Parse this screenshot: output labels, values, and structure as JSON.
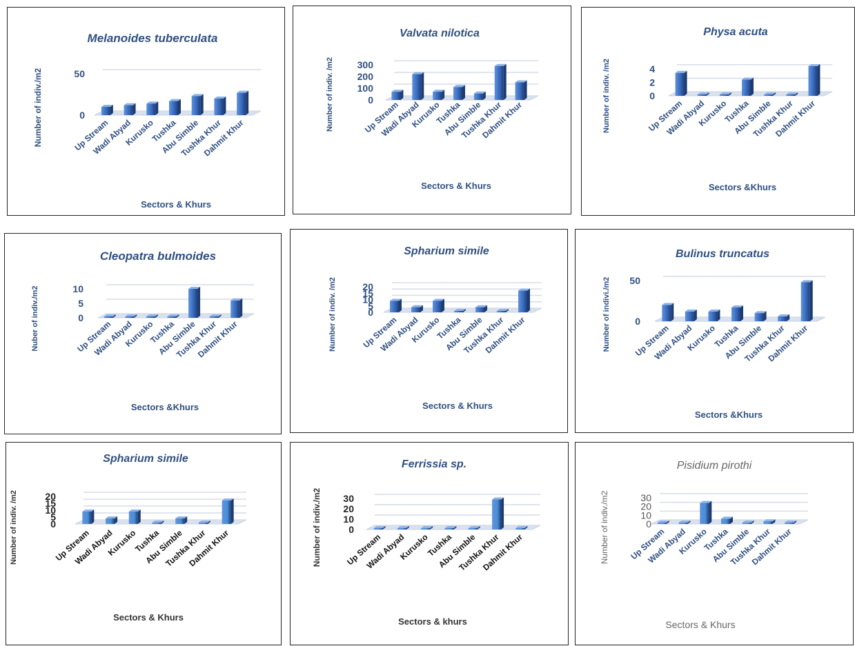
{
  "chart_data": [
    {
      "type": "bar",
      "title": "Melanoides tuberculata",
      "ylabel": "Number of indiv./m2",
      "xlabel": "Sectors & Khurs",
      "categories": [
        "Up Stream",
        "Wadi Abyad",
        "Kurusko",
        "Tushka",
        "Abu Simble",
        "Tushka Khur",
        "Dahmit Khur"
      ],
      "values": [
        10,
        12,
        14,
        17,
        23,
        20,
        27
      ],
      "yticks": [
        0,
        50
      ],
      "ylim": [
        0,
        50
      ],
      "grid": true,
      "color": "#3566b8"
    },
    {
      "type": "bar",
      "title": "Valvata nilotica",
      "ylabel": "Number of indiv. /m2",
      "xlabel": "Sectors & Khurs",
      "categories": [
        "Up Stream",
        "Wadi Abyad",
        "Kurusko",
        "Tushka",
        "Abu Simble",
        "Tushka Khur",
        "Dahmit Khur"
      ],
      "values": [
        70,
        220,
        70,
        110,
        55,
        290,
        150
      ],
      "yticks": [
        0,
        100,
        200,
        300
      ],
      "ylim": [
        0,
        300
      ],
      "grid": true,
      "color": "#3566b8"
    },
    {
      "type": "bar",
      "title": "Physa acuta",
      "ylabel": "Number of indiv. /m2",
      "xlabel": "Sectors &Khurs",
      "categories": [
        "Up Stream",
        "Wadi Abyad",
        "Kurusko",
        "Tushka",
        "Abu Simble",
        "Tushka Khur",
        "Dahmit Khur"
      ],
      "values": [
        3.4,
        0,
        0,
        2.4,
        0,
        0,
        4.4
      ],
      "yticks": [
        0,
        2,
        4
      ],
      "ylim": [
        0,
        4.4
      ],
      "grid": true,
      "color": "#3566b8"
    },
    {
      "type": "bar",
      "title": "Cleopatra bulmoides",
      "ylabel": "Nuber of indiv./m2",
      "xlabel": "Sectors &Khurs",
      "categories": [
        "Up Stream",
        "Wadi Abyad",
        "Kurusko",
        "Tushka",
        "Abu Simble",
        "Tushka Khur",
        "Dahmit Khur"
      ],
      "values": [
        0,
        0,
        0,
        0,
        10,
        0,
        6
      ],
      "yticks": [
        0,
        5,
        10
      ],
      "ylim": [
        0,
        10
      ],
      "grid": true,
      "color": "#3566b8"
    },
    {
      "type": "bar",
      "title": "Spharium simile",
      "ylabel": "Number of indiv. /m2",
      "xlabel": "Sectors & Khurs",
      "categories": [
        "Up Stream",
        "Wadi Abyad",
        "Kurusko",
        "Tushka",
        "Abu Simble",
        "Tushka Khur",
        "Dahmit Khur"
      ],
      "values": [
        9,
        4,
        9,
        0,
        4,
        0,
        17
      ],
      "yticks": [
        0,
        5,
        10,
        15,
        20
      ],
      "ylim": [
        0,
        20
      ],
      "grid": true,
      "color": "#3566b8"
    },
    {
      "type": "bar",
      "title": "Bulinus truncatus",
      "ylabel": "Number of indivi./m2",
      "xlabel": "Sectors &Khurs",
      "categories": [
        "Up Stream",
        "Wadi Abyad",
        "Kurusko",
        "Tushka",
        "Abu Simble",
        "Tushka Khur",
        "Dahmit Khur"
      ],
      "values": [
        20,
        12,
        12,
        17,
        10,
        6,
        48
      ],
      "yticks": [
        0,
        50
      ],
      "ylim": [
        0,
        50
      ],
      "grid": true,
      "color": "#3566b8"
    },
    {
      "type": "bar",
      "title": "Spharium simile",
      "ylabel": "Number of indiv. /m2",
      "xlabel": "Sectors & Khurs",
      "categories": [
        "Up Stream",
        "Wadi Abyad",
        "Kurusko",
        "Tushka",
        "Abu Simble",
        "Tushka Khur",
        "Dahmit Khur"
      ],
      "values": [
        9,
        4,
        9,
        0,
        4,
        0,
        17
      ],
      "yticks": [
        0,
        5,
        10,
        15,
        20
      ],
      "ylim": [
        0,
        20
      ],
      "grid": true,
      "color": "#4a8fd6"
    },
    {
      "type": "bar",
      "title": "Ferrissia sp.",
      "ylabel": "Number of indiv./m2",
      "xlabel": "Sectors & khurs",
      "categories": [
        "Up Stream",
        "Wadi Abyad",
        "Kurusko",
        "Tushka",
        "Abu Simble",
        "Tushka Khur",
        "Dahmit Khur"
      ],
      "values": [
        0,
        0,
        0,
        0,
        0,
        29,
        0
      ],
      "yticks": [
        0,
        10,
        20,
        30
      ],
      "ylim": [
        0,
        30
      ],
      "grid": true,
      "color": "#4a8fd6"
    },
    {
      "type": "bar",
      "title": "Pisidium pirothi",
      "ylabel": "Number of indiv./m2",
      "xlabel": "Sectors & Khurs",
      "categories": [
        "Up Stream",
        "Wadi Abyad",
        "Kurusko",
        "Tushka",
        "Abu Simble",
        "Tushka Khur",
        "Dahmit Khur"
      ],
      "values": [
        0,
        0,
        24,
        6,
        0,
        3,
        0
      ],
      "yticks": [
        0,
        10,
        20,
        30
      ],
      "ylim": [
        0,
        30
      ],
      "grid": true,
      "color": "#4a8fd6"
    }
  ]
}
